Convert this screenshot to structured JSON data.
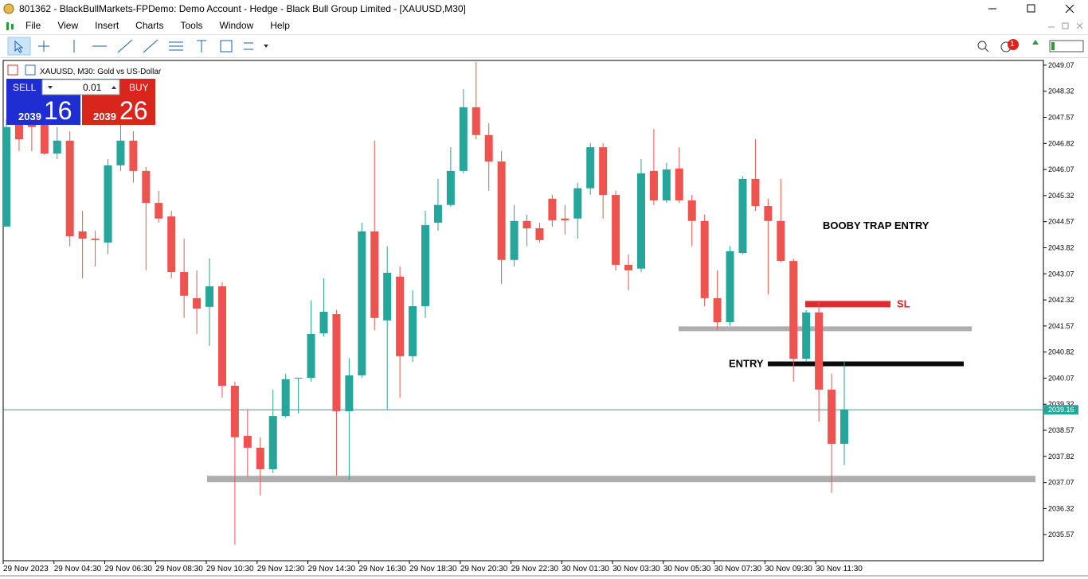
{
  "window": {
    "title": "801362 - BlackBullMarkets-FPDemo: Demo Account - Hedge - Black Bull Group Limited - [XAUUSD,M30]",
    "menu": [
      "File",
      "View",
      "Insert",
      "Charts",
      "Tools",
      "Window",
      "Help"
    ],
    "notifications": "1"
  },
  "trade_panel": {
    "sell": "SELL",
    "buy": "BUY",
    "lot": "0.01",
    "sell_small": "2039",
    "sell_big": "16",
    "buy_small": "2039",
    "buy_big": "26"
  },
  "chart_data": {
    "type": "candlestick",
    "title": "XAUUSD, M30:  Gold vs US-Dollar",
    "x": [
      "29 Nov 2023",
      null,
      null,
      null,
      "29 Nov 04:30",
      null,
      null,
      null,
      "29 Nov 06:30",
      null,
      null,
      null,
      "29 Nov 08:30",
      null,
      null,
      null,
      "29 Nov 10:30",
      null,
      null,
      null,
      "29 Nov 12:30",
      null,
      null,
      null,
      "29 Nov 14:30",
      null,
      null,
      null,
      "29 Nov 16:30",
      null,
      null,
      null,
      "29 Nov 18:30",
      null,
      null,
      null,
      "29 Nov 20:30",
      null,
      null,
      null,
      "29 Nov 22:30",
      null,
      null,
      null,
      "30 Nov 01:30",
      null,
      null,
      null,
      "30 Nov 03:30",
      null,
      null,
      null,
      "30 Nov 05:30",
      null,
      null,
      null,
      "30 Nov 07:30",
      null,
      null,
      null,
      "30 Nov 09:30",
      null,
      null,
      null,
      "30 Nov 11:30",
      null,
      null
    ],
    "open": [
      2044.43,
      2047.74,
      2047.74,
      2047.4,
      2046.53,
      2046.9,
      2044.29,
      2044.08,
      2043.97,
      2046.19,
      2046.9,
      2046.03,
      2045.11,
      2044.72,
      2043.12,
      2042.37,
      2042.12,
      2042.71,
      2039.85,
      2038.41,
      2038.07,
      2037.45,
      2038.98,
      2040.06,
      2040.08,
      2041.36,
      2041.91,
      2039.12,
      2040.15,
      2044.29,
      2041.73,
      2042.99,
      2040.7,
      2042.14,
      2044.54,
      2045.05,
      2046.03,
      2047.86,
      2047.06,
      2046.3,
      2043.47,
      2044.59,
      2044.38,
      2045.23,
      2044.66,
      2044.66,
      2045.53,
      2046.71,
      2045.34,
      2043.33,
      2043.22,
      2046.03,
      2045.18,
      2046.1,
      2045.18,
      2044.59,
      2042.37,
      2041.68,
      2043.67,
      2045.8,
      2045.02,
      2044.59,
      2043.44,
      2040.63,
      2041.96,
      2039.74,
      2038.18
    ],
    "high": [
      2047.51,
      2048.2,
      2047.97,
      2047.74,
      2047.29,
      2047.17,
      2044.88,
      2044.31,
      2046.37,
      2047.51,
      2047.17,
      2046.14,
      2045.46,
      2044.88,
      2044.08,
      2043.17,
      2043.51,
      2042.83,
      2039.97,
      2039.17,
      2038.37,
      2039.74,
      2040.2,
      2040.08,
      2042.3,
      2042.94,
      2042.03,
      2040.65,
      2044.54,
      2046.9,
      2043.86,
      2043.28,
      2042.6,
      2044.88,
      2045.8,
      2046.71,
      2048.38,
      2049.16,
      2047.4,
      2046.6,
      2045.05,
      2044.77,
      2044.54,
      2045.34,
      2045.05,
      2045.69,
      2046.83,
      2046.83,
      2045.46,
      2043.63,
      2046.37,
      2047.24,
      2046.26,
      2046.71,
      2045.34,
      2044.77,
      2043.17,
      2043.86,
      2045.87,
      2046.94,
      2045.23,
      2045.8,
      2043.51,
      2042.03,
      2042.25,
      2040.2,
      2040.54
    ],
    "low": [
      2044.43,
      2046.6,
      2046.6,
      2046.49,
      2046.37,
      2043.86,
      2042.94,
      2043.28,
      2043.63,
      2046.03,
      2045.69,
      2043.17,
      2044.54,
      2042.94,
      2041.8,
      2041.34,
      2041.0,
      2039.51,
      2035.28,
      2037.22,
      2036.7,
      2037.34,
      2038.94,
      2039.05,
      2039.97,
      2041.27,
      2037.27,
      2037.15,
      2040.08,
      2041.45,
      2039.17,
      2039.51,
      2040.54,
      2041.8,
      2044.31,
      2045.0,
      2045.96,
      2046.94,
      2045.46,
      2042.78,
      2043.28,
      2043.86,
      2043.97,
      2044.43,
      2044.2,
      2044.08,
      2045.34,
      2044.66,
      2043.17,
      2042.6,
      2043.12,
      2045.05,
      2045.11,
      2045.11,
      2043.86,
      2042.14,
      2041.45,
      2041.57,
      2043.63,
      2044.88,
      2042.48,
      2043.4,
      2039.97,
      2040.54,
      2038.82,
      2036.77,
      2037.57
    ],
    "close": [
      2047.29,
      2046.94,
      2047.29,
      2046.53,
      2046.9,
      2044.15,
      2044.08,
      2044.04,
      2046.19,
      2046.9,
      2046.03,
      2045.11,
      2044.66,
      2043.12,
      2042.44,
      2042.07,
      2042.71,
      2039.85,
      2038.37,
      2038.07,
      2037.45,
      2038.98,
      2040.04,
      2040.08,
      2041.34,
      2041.98,
      2039.12,
      2040.15,
      2044.29,
      2041.8,
      2043.1,
      2040.7,
      2042.14,
      2044.47,
      2045.05,
      2046.03,
      2047.86,
      2047.06,
      2046.3,
      2043.47,
      2044.59,
      2044.38,
      2044.04,
      2044.61,
      2044.61,
      2045.53,
      2046.71,
      2045.34,
      2043.33,
      2043.17,
      2045.96,
      2045.18,
      2046.07,
      2045.18,
      2044.59,
      2042.37,
      2041.68,
      2043.72,
      2045.8,
      2045.02,
      2044.59,
      2043.44,
      2040.63,
      2041.96,
      2039.74,
      2038.18,
      2039.17
    ],
    "up_color": "#26a69a",
    "down_color": "#ef5350",
    "ylim": [
      2034.82,
      2049.16
    ],
    "yticks": [
      2049.07,
      2048.32,
      2047.57,
      2046.82,
      2046.07,
      2045.32,
      2044.57,
      2043.82,
      2043.07,
      2042.32,
      2041.57,
      2040.82,
      2040.07,
      2039.32,
      2038.57,
      2037.82,
      2037.07,
      2036.32,
      2035.57
    ],
    "last_price": 2039.16,
    "last_price_color": "#26a69a",
    "hlines": [
      {
        "value": 2037.17,
        "color": "#aaaaaa"
      },
      {
        "value": 2041.49,
        "color": "#aaaaaa"
      },
      {
        "value": 2042.2,
        "color": "#e01f26",
        "label": "SL"
      },
      {
        "value": 2040.48,
        "color": "#000000",
        "label": "ENTRY"
      }
    ],
    "annotation": "BOOBY TRAP ENTRY"
  }
}
